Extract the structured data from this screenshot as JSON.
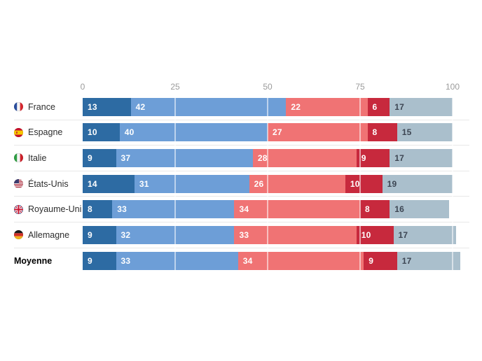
{
  "chart_data": {
    "type": "bar",
    "variant": "horizontal-stacked",
    "title": "",
    "xlabel": "",
    "ylabel": "",
    "xlim": [
      0,
      100
    ],
    "x_ticks": [
      "0",
      "25",
      "50",
      "75",
      "100"
    ],
    "x_tick_values": [
      0,
      25,
      50,
      75,
      100
    ],
    "grid": "vertical-white-over-bars",
    "legend": "none",
    "series_colors": [
      {
        "name": "dark-blue",
        "hex": "#2d6ba3"
      },
      {
        "name": "light-blue",
        "hex": "#6d9ed7"
      },
      {
        "name": "light-red",
        "hex": "#f07374"
      },
      {
        "name": "dark-red",
        "hex": "#c7293d"
      },
      {
        "name": "gray",
        "hex": "#aabfcc"
      }
    ],
    "rows": [
      {
        "label": "France",
        "flag": "fr",
        "bold": false,
        "values": [
          13,
          42,
          22,
          6,
          17
        ]
      },
      {
        "label": "Espagne",
        "flag": "es",
        "bold": false,
        "values": [
          10,
          40,
          27,
          8,
          15
        ]
      },
      {
        "label": "Italie",
        "flag": "it",
        "bold": false,
        "values": [
          9,
          37,
          28,
          9,
          17
        ]
      },
      {
        "label": "États-Unis",
        "flag": "us",
        "bold": false,
        "values": [
          14,
          31,
          26,
          10,
          19
        ]
      },
      {
        "label": "Royaume-Uni",
        "flag": "gb",
        "bold": false,
        "values": [
          8,
          33,
          34,
          8,
          16
        ]
      },
      {
        "label": "Allemagne",
        "flag": "de",
        "bold": false,
        "values": [
          9,
          32,
          33,
          10,
          17
        ]
      },
      {
        "label": "Moyenne",
        "flag": null,
        "bold": true,
        "values": [
          9,
          33,
          34,
          9,
          17
        ]
      }
    ],
    "colors": {
      "axis_label": "#9b9b9b",
      "row_separator": "#e8e8e8",
      "value_label_on_color": "#ffffff",
      "value_label_on_gray": "#3d4653",
      "row_label": "#2d2d2d",
      "background": "#ffffff"
    }
  }
}
